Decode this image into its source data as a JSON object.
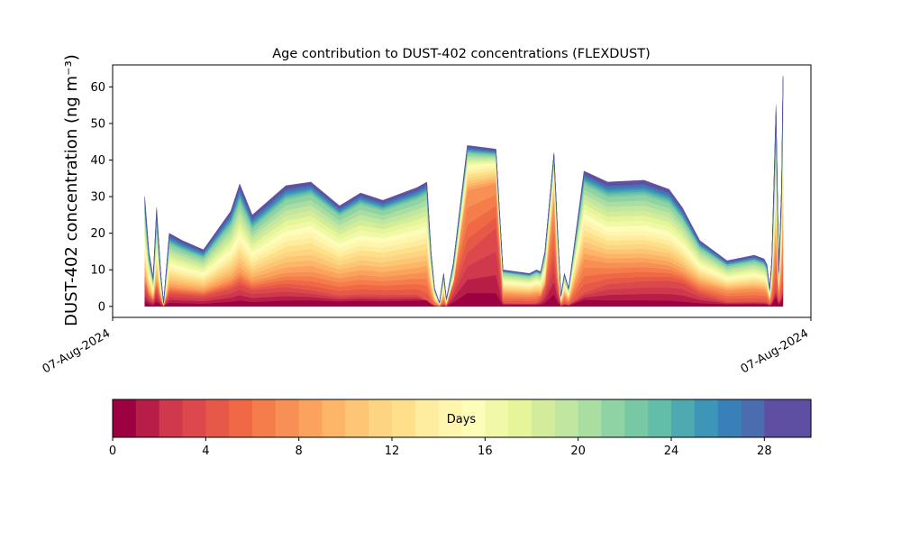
{
  "chart_data": {
    "type": "area",
    "stacked": true,
    "title": "Age contribution to DUST-402 concentrations (FLEXDUST)",
    "xlabel": "",
    "ylabel": "DUST-402 concentration (ng m⁻³)",
    "ylim": [
      -3,
      66
    ],
    "yticks": [
      0,
      10,
      20,
      30,
      40,
      50,
      60
    ],
    "xlim": [
      0,
      1
    ],
    "xtick_labels": [
      "07-Aug-2024",
      "07-Aug-2024"
    ],
    "x": [
      0.046,
      0.052,
      0.058,
      0.063,
      0.069,
      0.073,
      0.081,
      0.1,
      0.13,
      0.169,
      0.182,
      0.2,
      0.248,
      0.284,
      0.325,
      0.355,
      0.387,
      0.436,
      0.45,
      0.456,
      0.461,
      0.468,
      0.474,
      0.478,
      0.488,
      0.508,
      0.549,
      0.559,
      0.578,
      0.597,
      0.607,
      0.613,
      0.619,
      0.632,
      0.637,
      0.642,
      0.647,
      0.653,
      0.675,
      0.709,
      0.761,
      0.797,
      0.816,
      0.841,
      0.88,
      0.919,
      0.933,
      0.937,
      0.941,
      0.944,
      0.95,
      0.954,
      0.958,
      0.96
    ],
    "total": [
      30,
      15,
      8,
      27,
      9,
      1,
      20,
      18,
      15.5,
      26,
      33.5,
      25,
      33,
      34,
      27.5,
      31,
      29,
      32.5,
      34,
      15,
      5,
      1,
      9,
      2,
      12,
      44,
      43,
      10,
      9.5,
      9,
      10,
      9.5,
      15,
      42,
      22,
      3,
      9,
      5,
      37,
      34,
      34.5,
      32,
      27,
      18,
      12.5,
      14,
      13,
      11.5,
      5,
      13,
      55,
      10,
      33,
      63
    ],
    "fresh": [
      1,
      1,
      0,
      1,
      0,
      0,
      0,
      0,
      0,
      0,
      0,
      0,
      0,
      0,
      0,
      0,
      0,
      0,
      0,
      0,
      0,
      0,
      0,
      0,
      7,
      22,
      22,
      0.5,
      0,
      0,
      0,
      3,
      6,
      20,
      8,
      0,
      0,
      0,
      0,
      0,
      0,
      0,
      0,
      0,
      0,
      0,
      0,
      0,
      0,
      0,
      0,
      2,
      3,
      8
    ],
    "profile": [
      [
        0.05,
        0.05,
        0.05,
        0.05,
        0.05,
        0.05,
        0.05,
        0.05,
        0.05,
        0.05,
        0.05,
        0.05,
        0.05,
        0.05,
        0.05,
        0.05,
        0.05,
        0.05,
        0.05,
        0.05,
        0.05,
        0.05,
        0.05,
        0.05,
        0.05,
        0.05,
        0.05,
        0.05,
        0.05,
        0.05,
        0.05,
        0.05,
        0.05,
        0.05,
        0.05,
        0.05,
        0.05,
        0.05,
        0.05,
        0.05,
        0.05,
        0.05,
        0.05,
        0.05,
        0.05,
        0.05,
        0.05,
        0.05,
        0.05,
        0.05,
        0.05,
        0.05,
        0.05,
        0.05
      ],
      [
        0.18,
        0.18,
        0.18,
        0.18,
        0.18,
        0.18,
        0.18,
        0.18,
        0.18,
        0.18,
        0.18,
        0.18,
        0.16,
        0.13,
        0.11,
        0.11,
        0.11,
        0.1,
        0.05,
        0.05,
        0.05,
        0.05,
        0.05,
        0.05,
        0.05,
        0.3,
        0.5,
        0.1,
        0.1,
        0.1,
        0.1,
        0.1,
        0.1,
        0.3,
        0.2,
        0.1,
        0.1,
        0.1,
        0.1,
        0.18,
        0.2,
        0.22,
        0.24,
        0.2,
        0.1,
        0.1,
        0.1,
        0.1,
        0.1,
        0.1,
        0.1,
        0.15,
        0.1,
        0.1
      ],
      [
        0.28,
        0.28,
        0.28,
        0.28,
        0.28,
        0.28,
        0.28,
        0.28,
        0.28,
        0.28,
        0.28,
        0.28,
        0.28,
        0.28,
        0.28,
        0.28,
        0.28,
        0.28,
        0.28,
        0.28,
        0.28,
        0.28,
        0.28,
        0.28,
        0.28,
        0.72,
        0.78,
        0.35,
        0.35,
        0.35,
        0.35,
        0.35,
        0.35,
        0.7,
        0.4,
        0.35,
        0.35,
        0.35,
        0.35,
        0.35,
        0.35,
        0.35,
        0.35,
        0.35,
        0.35,
        0.35,
        0.35,
        0.35,
        0.35,
        0.35,
        0.35,
        0.4,
        0.35,
        0.4
      ],
      [
        0.55,
        0.55,
        0.55,
        0.55,
        0.55,
        0.55,
        0.55,
        0.55,
        0.55,
        0.55,
        0.55,
        0.55,
        0.58,
        0.6,
        0.58,
        0.58,
        0.6,
        0.6,
        0.6,
        0.6,
        0.6,
        0.6,
        0.6,
        0.6,
        0.6,
        0.86,
        0.9,
        0.65,
        0.65,
        0.65,
        0.65,
        0.65,
        0.65,
        0.88,
        0.7,
        0.65,
        0.65,
        0.65,
        0.65,
        0.6,
        0.6,
        0.6,
        0.6,
        0.6,
        0.6,
        0.6,
        0.6,
        0.6,
        0.6,
        0.6,
        0.6,
        0.65,
        0.6,
        0.7
      ],
      [
        0.85,
        0.85,
        0.85,
        0.85,
        0.85,
        0.85,
        0.85,
        0.85,
        0.85,
        0.85,
        0.85,
        0.85,
        0.88,
        0.9,
        0.9,
        0.9,
        0.9,
        0.9,
        0.9,
        0.9,
        0.9,
        0.9,
        0.9,
        0.9,
        0.9,
        0.95,
        0.96,
        0.92,
        0.92,
        0.92,
        0.92,
        0.92,
        0.92,
        0.96,
        0.92,
        0.92,
        0.92,
        0.92,
        0.9,
        0.88,
        0.88,
        0.88,
        0.88,
        0.88,
        0.88,
        0.88,
        0.88,
        0.88,
        0.88,
        0.88,
        0.88,
        0.9,
        0.88,
        0.92
      ]
    ],
    "colorbar": {
      "label": "Days",
      "range": [
        0,
        30
      ],
      "ticks": [
        0,
        4,
        8,
        12,
        16,
        20,
        24,
        28
      ],
      "colors": [
        "#9e0142",
        "#b81d48",
        "#d0384e",
        "#dc484c",
        "#e65848",
        "#f06944",
        "#f57c4b",
        "#f88f54",
        "#fba35d",
        "#fdb567",
        "#fdc675",
        "#fdd482",
        "#fee08b",
        "#feec9f",
        "#fff5ad",
        "#fbfdb9",
        "#f1f9a9",
        "#e6f598",
        "#d3ec9b",
        "#c1e6a0",
        "#aadda2",
        "#8fd2a4",
        "#78c8a4",
        "#62bea6",
        "#4fa9b0",
        "#3d95b8",
        "#3980b9",
        "#4a6db0",
        "#5e4fa2",
        "#5e4fa2"
      ]
    }
  }
}
